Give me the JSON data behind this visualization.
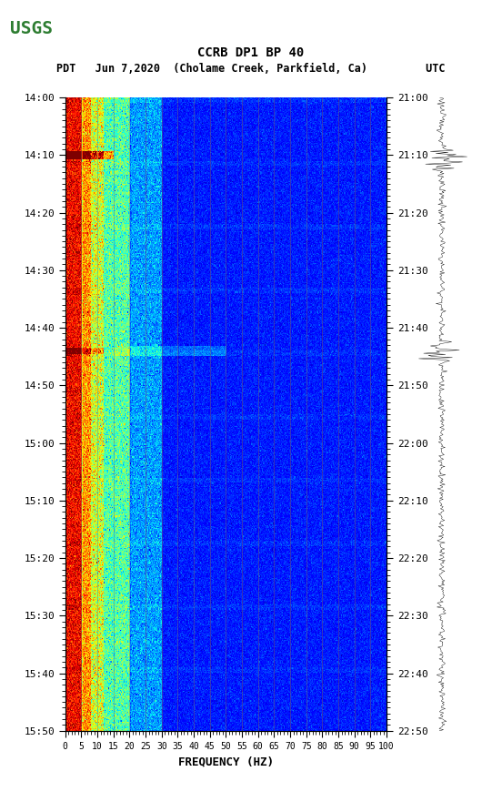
{
  "title_line1": "CCRB DP1 BP 40",
  "title_line2": "PDT   Jun 7,2020  (Cholame Creek, Parkfield, Ca)         UTC",
  "xlabel": "FREQUENCY (HZ)",
  "freq_min": 0,
  "freq_max": 100,
  "freq_ticks": [
    0,
    5,
    10,
    15,
    20,
    25,
    30,
    35,
    40,
    45,
    50,
    55,
    60,
    65,
    70,
    75,
    80,
    85,
    90,
    95,
    100
  ],
  "time_start_pdt": "14:00",
  "time_end_pdt": "15:50",
  "time_start_utc": "21:00",
  "time_end_utc": "22:50",
  "pdt_ticks": [
    "14:00",
    "14:10",
    "14:20",
    "14:30",
    "14:40",
    "14:50",
    "15:00",
    "15:10",
    "15:20",
    "15:30",
    "15:40",
    "15:50"
  ],
  "utc_ticks": [
    "21:00",
    "21:10",
    "21:20",
    "21:30",
    "21:40",
    "21:50",
    "22:00",
    "22:10",
    "22:20",
    "22:30",
    "22:40",
    "22:50"
  ],
  "n_time": 600,
  "n_freq": 400,
  "vertical_line_freqs": [
    5,
    10,
    15,
    20,
    25,
    30,
    35,
    40,
    45,
    50,
    55,
    60,
    65,
    70,
    75,
    80,
    85,
    90,
    95,
    100
  ],
  "bg_color": "white",
  "usgs_green": "#2e7d32",
  "spectrogram_vmin": 0,
  "spectrogram_vmax": 1
}
